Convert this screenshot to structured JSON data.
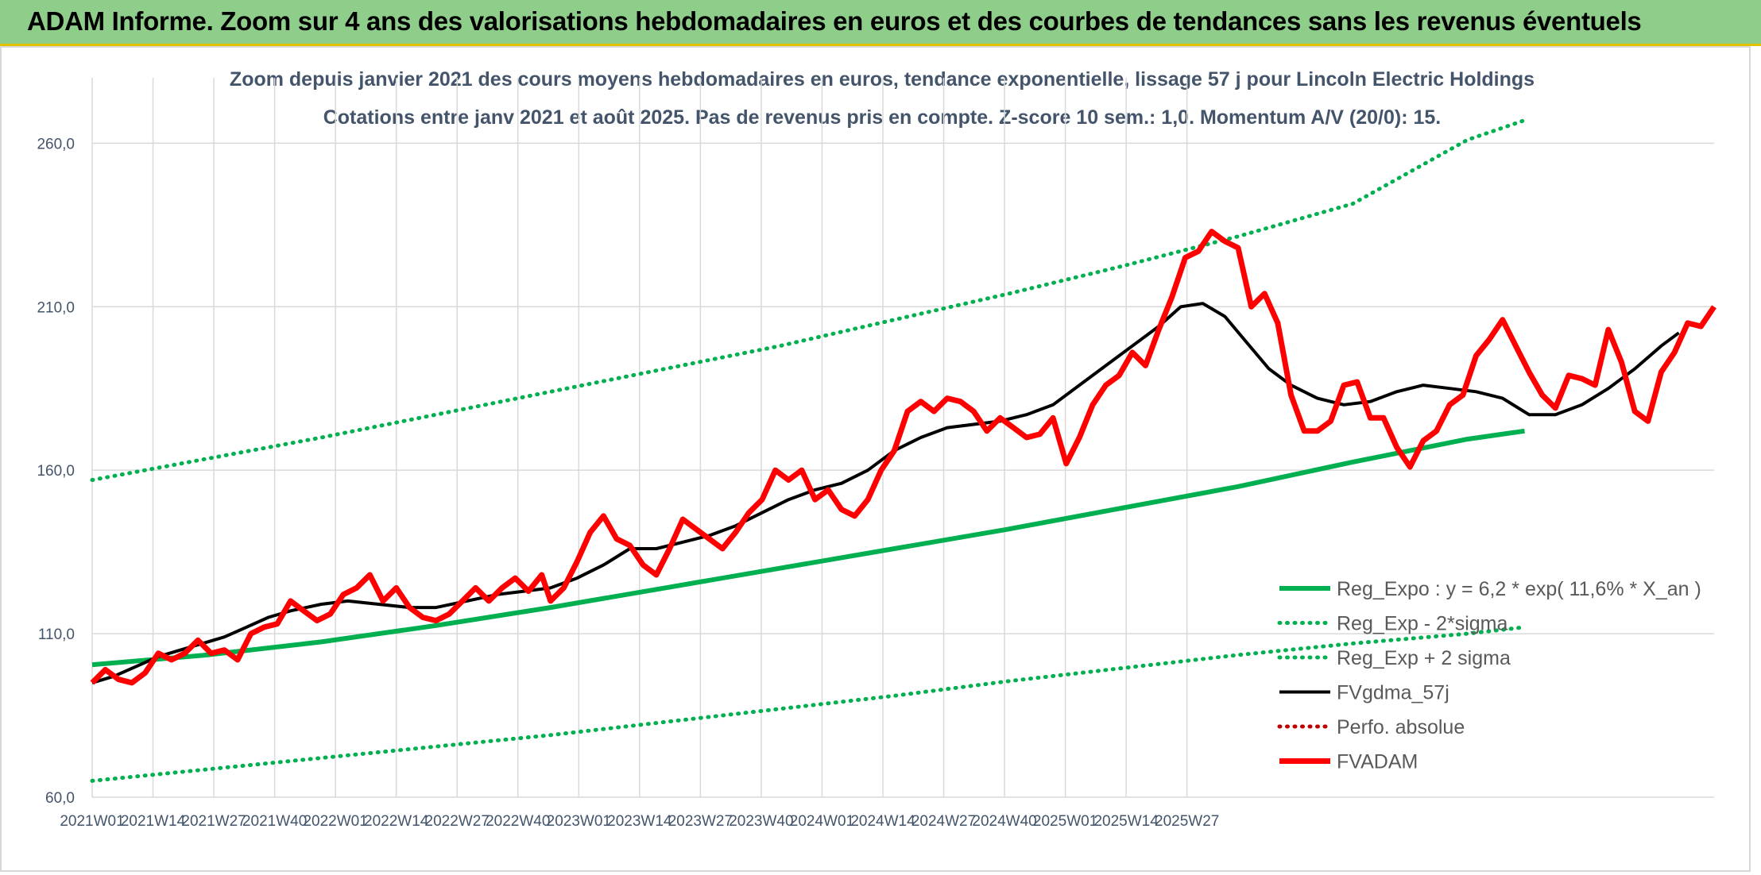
{
  "banner": {
    "title": "ADAM Informe. Zoom sur 4 ans des valorisations hebdomadaires en euros et des courbes de tendances sans les revenus éventuels"
  },
  "colors": {
    "banner_bg": "#8fce8a",
    "banner_border": "#e3c100",
    "trend": "#00b050",
    "fvgdma": "#000000",
    "fvadam": "#ff0000",
    "perfo": "#c00000"
  },
  "chart_data": {
    "type": "line",
    "title": "Zoom depuis janvier 2021 des cours moyens hebdomadaires en euros, tendance exponentielle, lissage 57 j pour Lincoln Electric Holdings",
    "subtitle": "Cotations entre janv 2021 et août 2025. Pas de revenus pris en compte. Z-score 10 sem.: 1,0. Momentum A/V (20/0): 15.",
    "ylim": [
      60,
      280
    ],
    "yticks": [
      "60,0",
      "110,0",
      "160,0",
      "210,0",
      "260,0"
    ],
    "ytick_values": [
      60,
      110,
      160,
      210,
      260
    ],
    "xticks": [
      "2021W01",
      "2021W14",
      "2021W27",
      "2021W40",
      "2022W01",
      "2022W14",
      "2022W27",
      "2022W40",
      "2023W01",
      "2023W14",
      "2023W27",
      "2023W40",
      "2024W01",
      "2024W14",
      "2024W27",
      "2024W40",
      "2025W01",
      "2025W14",
      "2025W27"
    ],
    "grid": true,
    "legend_position": "bottom-right",
    "series": [
      {
        "name": "Reg_Expo : y = 6,2 * exp( 11,6% *  X_an )",
        "style": "solid-thick",
        "color": "#00b050",
        "points": [
          [
            0,
            100.5
          ],
          [
            26,
            103.5
          ],
          [
            52,
            107.5
          ],
          [
            78,
            112.5
          ],
          [
            104,
            118
          ],
          [
            130,
            124
          ],
          [
            156,
            130
          ],
          [
            182,
            136
          ],
          [
            208,
            142
          ],
          [
            234,
            148.5
          ],
          [
            260,
            155
          ],
          [
            286,
            162.5
          ],
          [
            312,
            169.5
          ],
          [
            325,
            172
          ]
        ]
      },
      {
        "name": "Reg_Exp - 2*sigma",
        "style": "dotted",
        "color": "#00b050",
        "points": [
          [
            0,
            65
          ],
          [
            26,
            68.5
          ],
          [
            52,
            72
          ],
          [
            78,
            75.5
          ],
          [
            104,
            79
          ],
          [
            130,
            83
          ],
          [
            156,
            87
          ],
          [
            182,
            91
          ],
          [
            208,
            95.5
          ],
          [
            234,
            99.5
          ],
          [
            260,
            103.5
          ],
          [
            286,
            107
          ],
          [
            312,
            110
          ],
          [
            325,
            112
          ]
        ]
      },
      {
        "name": "Reg_Exp + 2 sigma",
        "style": "dotted",
        "color": "#00b050",
        "points": [
          [
            0,
            157
          ],
          [
            26,
            163.5
          ],
          [
            52,
            170
          ],
          [
            78,
            177
          ],
          [
            104,
            184
          ],
          [
            130,
            191
          ],
          [
            156,
            198
          ],
          [
            182,
            206
          ],
          [
            208,
            214
          ],
          [
            234,
            222.5
          ],
          [
            260,
            231.5
          ],
          [
            286,
            241.5
          ],
          [
            312,
            261
          ],
          [
            325,
            267
          ]
        ]
      },
      {
        "name": "FVgdma_57j",
        "style": "solid",
        "color": "#000000",
        "points": [
          [
            0,
            95
          ],
          [
            5,
            97
          ],
          [
            10,
            100
          ],
          [
            15,
            103
          ],
          [
            20,
            105
          ],
          [
            25,
            107
          ],
          [
            30,
            109
          ],
          [
            35,
            112
          ],
          [
            40,
            115
          ],
          [
            45,
            117
          ],
          [
            52,
            119
          ],
          [
            58,
            120
          ],
          [
            65,
            119
          ],
          [
            72,
            118
          ],
          [
            78,
            118
          ],
          [
            85,
            120
          ],
          [
            92,
            122
          ],
          [
            98,
            123
          ],
          [
            104,
            124
          ],
          [
            110,
            127
          ],
          [
            116,
            131
          ],
          [
            122,
            136
          ],
          [
            128,
            136
          ],
          [
            134,
            138
          ],
          [
            140,
            140
          ],
          [
            146,
            143
          ],
          [
            152,
            147
          ],
          [
            158,
            151
          ],
          [
            164,
            154
          ],
          [
            170,
            156
          ],
          [
            176,
            160
          ],
          [
            182,
            166
          ],
          [
            188,
            170
          ],
          [
            194,
            173
          ],
          [
            200,
            174
          ],
          [
            206,
            175
          ],
          [
            212,
            177
          ],
          [
            218,
            180
          ],
          [
            224,
            186
          ],
          [
            230,
            192
          ],
          [
            236,
            198
          ],
          [
            242,
            204
          ],
          [
            247,
            210
          ],
          [
            252,
            211
          ],
          [
            257,
            207
          ],
          [
            262,
            199
          ],
          [
            267,
            191
          ],
          [
            272,
            186
          ],
          [
            278,
            182
          ],
          [
            284,
            180
          ],
          [
            290,
            181
          ],
          [
            296,
            184
          ],
          [
            302,
            186
          ],
          [
            308,
            185
          ],
          [
            314,
            184
          ],
          [
            320,
            182
          ],
          [
            326,
            177
          ],
          [
            332,
            177
          ],
          [
            338,
            180
          ],
          [
            344,
            185
          ],
          [
            350,
            191
          ],
          [
            356,
            198
          ],
          [
            360,
            202
          ]
        ]
      },
      {
        "name": "Perfo. absolue",
        "style": "dotted",
        "color": "#c00000",
        "points": []
      },
      {
        "name": "FVADAM",
        "style": "solid-thick",
        "color": "#ff0000",
        "points": [
          [
            0,
            95
          ],
          [
            3,
            99
          ],
          [
            6,
            96
          ],
          [
            9,
            95
          ],
          [
            12,
            98
          ],
          [
            15,
            104
          ],
          [
            18,
            102
          ],
          [
            21,
            104
          ],
          [
            24,
            108
          ],
          [
            27,
            104
          ],
          [
            30,
            105
          ],
          [
            33,
            102
          ],
          [
            36,
            110
          ],
          [
            39,
            112
          ],
          [
            42,
            113
          ],
          [
            45,
            120
          ],
          [
            48,
            117
          ],
          [
            51,
            114
          ],
          [
            54,
            116
          ],
          [
            57,
            122
          ],
          [
            60,
            124
          ],
          [
            63,
            128
          ],
          [
            66,
            120
          ],
          [
            69,
            124
          ],
          [
            72,
            118
          ],
          [
            75,
            115
          ],
          [
            78,
            114
          ],
          [
            81,
            116
          ],
          [
            84,
            120
          ],
          [
            87,
            124
          ],
          [
            90,
            120
          ],
          [
            93,
            124
          ],
          [
            96,
            127
          ],
          [
            99,
            123
          ],
          [
            102,
            128
          ],
          [
            104,
            120
          ],
          [
            107,
            124
          ],
          [
            110,
            132
          ],
          [
            113,
            141
          ],
          [
            116,
            146
          ],
          [
            119,
            139
          ],
          [
            122,
            137
          ],
          [
            125,
            131
          ],
          [
            128,
            128
          ],
          [
            131,
            136
          ],
          [
            134,
            145
          ],
          [
            137,
            142
          ],
          [
            140,
            139
          ],
          [
            143,
            136
          ],
          [
            146,
            141
          ],
          [
            149,
            147
          ],
          [
            152,
            151
          ],
          [
            155,
            160
          ],
          [
            158,
            157
          ],
          [
            161,
            160
          ],
          [
            164,
            151
          ],
          [
            167,
            154
          ],
          [
            170,
            148
          ],
          [
            173,
            146
          ],
          [
            176,
            151
          ],
          [
            179,
            160
          ],
          [
            182,
            166
          ],
          [
            185,
            178
          ],
          [
            188,
            181
          ],
          [
            191,
            178
          ],
          [
            194,
            182
          ],
          [
            197,
            181
          ],
          [
            200,
            178
          ],
          [
            203,
            172
          ],
          [
            206,
            176
          ],
          [
            209,
            173
          ],
          [
            212,
            170
          ],
          [
            215,
            171
          ],
          [
            218,
            176
          ],
          [
            221,
            162
          ],
          [
            224,
            170
          ],
          [
            227,
            180
          ],
          [
            230,
            186
          ],
          [
            233,
            189
          ],
          [
            236,
            196
          ],
          [
            239,
            192
          ],
          [
            242,
            203
          ],
          [
            245,
            213
          ],
          [
            248,
            225
          ],
          [
            251,
            227
          ],
          [
            254,
            233
          ],
          [
            257,
            230
          ],
          [
            260,
            228
          ],
          [
            263,
            210
          ],
          [
            266,
            214
          ],
          [
            269,
            205
          ],
          [
            272,
            183
          ],
          [
            275,
            172
          ],
          [
            278,
            172
          ],
          [
            281,
            175
          ],
          [
            284,
            186
          ],
          [
            287,
            187
          ],
          [
            290,
            176
          ],
          [
            293,
            176
          ],
          [
            296,
            167
          ],
          [
            299,
            161
          ],
          [
            302,
            169
          ],
          [
            305,
            172
          ],
          [
            308,
            180
          ],
          [
            311,
            183
          ],
          [
            314,
            195
          ],
          [
            317,
            200
          ],
          [
            320,
            206
          ],
          [
            323,
            198
          ],
          [
            326,
            190
          ],
          [
            329,
            183
          ],
          [
            332,
            179
          ],
          [
            335,
            189
          ],
          [
            338,
            188
          ],
          [
            341,
            186
          ],
          [
            344,
            203
          ],
          [
            347,
            193
          ],
          [
            350,
            178
          ],
          [
            353,
            175
          ],
          [
            356,
            190
          ],
          [
            359,
            196
          ],
          [
            362,
            205
          ],
          [
            365,
            204
          ],
          [
            368,
            210
          ]
        ]
      }
    ]
  }
}
